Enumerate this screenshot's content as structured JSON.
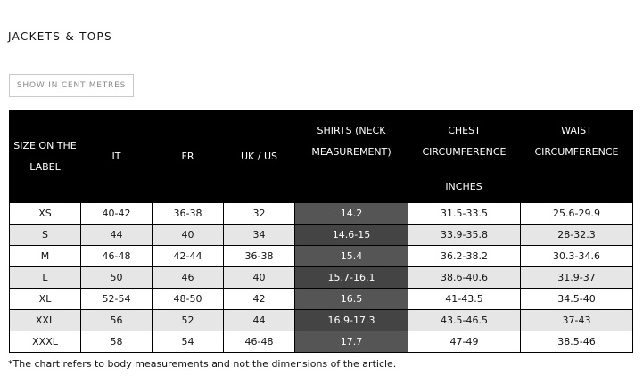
{
  "section_title": "JACKETS & TOPS",
  "unit_toggle_label": "SHOW IN CENTIMETRES",
  "table": {
    "headers": {
      "size_label": "SIZE ON THE LABEL",
      "it": "IT",
      "fr": "FR",
      "uk_us": "UK / US",
      "shirts": "SHIRTS (NECK MEASUREMENT)",
      "chest": "CHEST CIRCUMFERENCE",
      "waist": "WAIST CIRCUMFERENCE",
      "unit": "INCHES"
    },
    "rows": [
      [
        "XS",
        "40-42",
        "36-38",
        "32",
        "14.2",
        "31.5-33.5",
        "25.6-29.9"
      ],
      [
        "S",
        "44",
        "40",
        "34",
        "14.6-15",
        "33.9-35.8",
        "28-32.3"
      ],
      [
        "M",
        "46-48",
        "42-44",
        "36-38",
        "15.4",
        "36.2-38.2",
        "30.3-34.6"
      ],
      [
        "L",
        "50",
        "46",
        "40",
        "15.7-16.1",
        "38.6-40.6",
        "31.9-37"
      ],
      [
        "XL",
        "52-54",
        "48-50",
        "42",
        "16.5",
        "41-43.5",
        "34.5-40"
      ],
      [
        "XXL",
        "56",
        "52",
        "44",
        "16.9-17.3",
        "43.5-46.5",
        "37-43"
      ],
      [
        "XXXL",
        "58",
        "54",
        "46-48",
        "17.7",
        "47-49",
        "38.5-46"
      ]
    ]
  },
  "footnote": "*The chart refers to body measurements and not the dimensions of the article.",
  "colors": {
    "header_bg": "#000000",
    "header_text": "#ffffff",
    "row_alt_bg": "#e6e6e6",
    "highlight_col_bg": "#555555"
  }
}
